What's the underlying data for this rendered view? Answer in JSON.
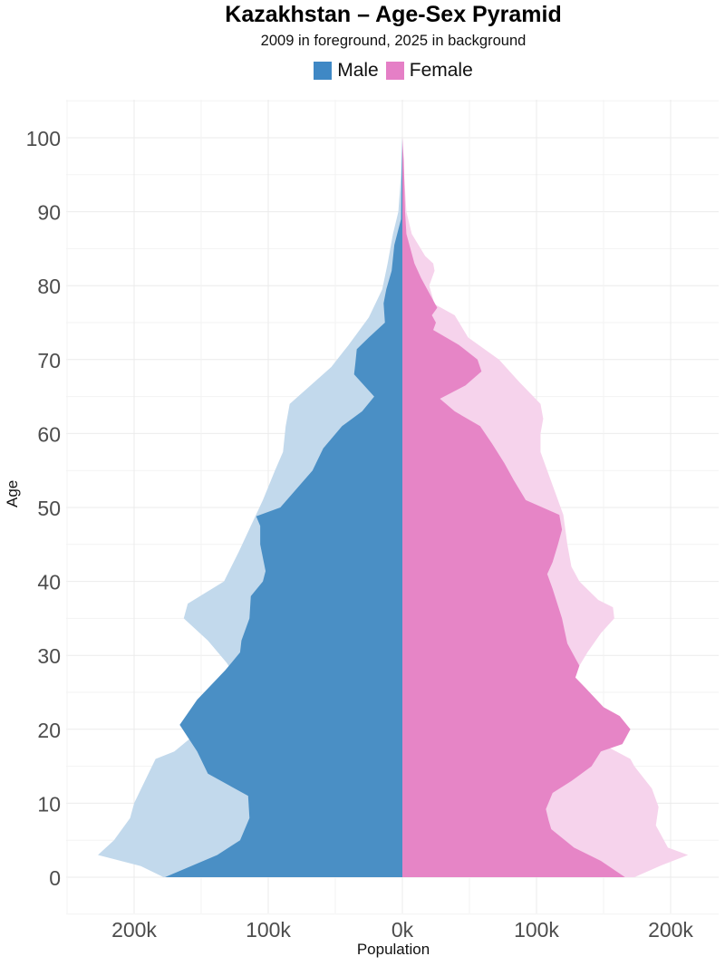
{
  "header": {
    "title": "Kazakhstan – Age-Sex Pyramid",
    "subtitle": "2009 in foreground, 2025 in background"
  },
  "legend": [
    {
      "label": "Male",
      "color": "#3F88C5"
    },
    {
      "label": "Female",
      "color": "#E57FC6"
    }
  ],
  "axes": {
    "xlabel": "Population",
    "ylabel": "Age",
    "xticks": [
      "200k",
      "100k",
      "0k",
      "100k",
      "200k"
    ],
    "yticks": [
      "0",
      "10",
      "20",
      "30",
      "40",
      "50",
      "60",
      "70",
      "80",
      "90",
      "100"
    ]
  },
  "chart_data": {
    "type": "area",
    "title": "Kazakhstan – Age-Sex Pyramid",
    "subtitle": "2009 in foreground, 2025 in background",
    "xlabel": "Population",
    "ylabel": "Age",
    "xlim": [
      -250,
      240
    ],
    "ylim": [
      -5,
      105
    ],
    "units": "thousands",
    "legend": [
      "Male",
      "Female"
    ],
    "legend_position": "top",
    "grid": true,
    "colors": {
      "male": "#4A8FC5",
      "female": "#E685C6",
      "male_bg": "#C2D9EC",
      "female_bg": "#F6D3EC"
    },
    "series": [
      {
        "name": "Male 2025 (background)",
        "ages": [
          0,
          1.5,
          3,
          5,
          8,
          10,
          13,
          16,
          17,
          20,
          22,
          25,
          29,
          32,
          35,
          37,
          40,
          44,
          47.5,
          51,
          55,
          57.5,
          61,
          64,
          69,
          72,
          75.7,
          79.5,
          83,
          87,
          90,
          95,
          100
        ],
        "values": [
          178,
          195,
          227,
          215,
          203,
          200,
          192,
          184,
          170,
          150,
          130,
          117,
          131,
          145,
          163,
          160,
          133,
          122,
          113,
          104,
          95,
          89,
          87,
          84,
          53,
          40,
          25,
          15,
          11,
          7,
          3,
          1,
          0
        ]
      },
      {
        "name": "Male 2009 (foreground)",
        "ages": [
          0,
          3,
          5,
          8,
          11,
          14,
          17,
          20.6,
          24,
          28,
          30.4,
          32,
          35,
          38,
          40,
          41.4,
          45,
          47.5,
          48.8,
          50,
          52.5,
          55,
          58,
          61,
          63,
          65,
          68,
          69.6,
          71.4,
          73,
          75,
          77.6,
          79.5,
          82,
          85.5,
          89,
          95,
          100
        ],
        "values": [
          177,
          138,
          121,
          114,
          115,
          145,
          153,
          166,
          153,
          132,
          121,
          120,
          114,
          113,
          104,
          102,
          106,
          106,
          109,
          91,
          79,
          67,
          59,
          45,
          30,
          21,
          36,
          35,
          34,
          25,
          13,
          14,
          12,
          8,
          6,
          1,
          0.5,
          0
        ]
      },
      {
        "name": "Female 2025 (background)",
        "ages": [
          0,
          1.6,
          3,
          4,
          7,
          9.5,
          12,
          15,
          16,
          21,
          25,
          28.6,
          30.4,
          33,
          35,
          36.5,
          37.5,
          40,
          42,
          45,
          49,
          50,
          52,
          55,
          57.5,
          60,
          62,
          64,
          67,
          70,
          73,
          76,
          77.5,
          80,
          82,
          83,
          84,
          87,
          90,
          96,
          100
        ],
        "values": [
          173,
          193,
          213,
          198,
          189,
          191,
          186,
          173,
          170,
          118,
          109,
          132,
          138,
          148,
          158,
          157,
          146,
          132,
          126,
          123,
          120,
          118,
          114,
          108,
          103,
          103,
          105,
          103,
          87,
          72,
          49,
          39,
          24,
          20,
          24,
          23,
          17,
          7,
          3,
          1,
          0
        ]
      },
      {
        "name": "Female 2009 (foreground)",
        "ages": [
          0,
          2.2,
          4,
          6.5,
          7.7,
          9.2,
          11.4,
          13,
          15,
          17,
          18,
          20,
          21.8,
          23,
          25.5,
          27,
          28.6,
          31.6,
          35,
          39,
          41,
          42.6,
          45,
          47,
          49,
          51,
          53.7,
          56,
          58.6,
          61,
          63,
          64.7,
          66.5,
          68.4,
          70,
          72,
          74,
          75,
          76,
          77,
          78,
          81,
          83,
          87,
          90,
          97,
          100
        ],
        "values": [
          166,
          148,
          128,
          111,
          109,
          107,
          112,
          126,
          141,
          148,
          164,
          170,
          162,
          150,
          137,
          129,
          132,
          123,
          119,
          112,
          108,
          112,
          116,
          119,
          117,
          92,
          83,
          76,
          67,
          58,
          39,
          28,
          47,
          59,
          56,
          42,
          23,
          25,
          22,
          26,
          23,
          14,
          9,
          3,
          2,
          1,
          0
        ]
      }
    ]
  }
}
